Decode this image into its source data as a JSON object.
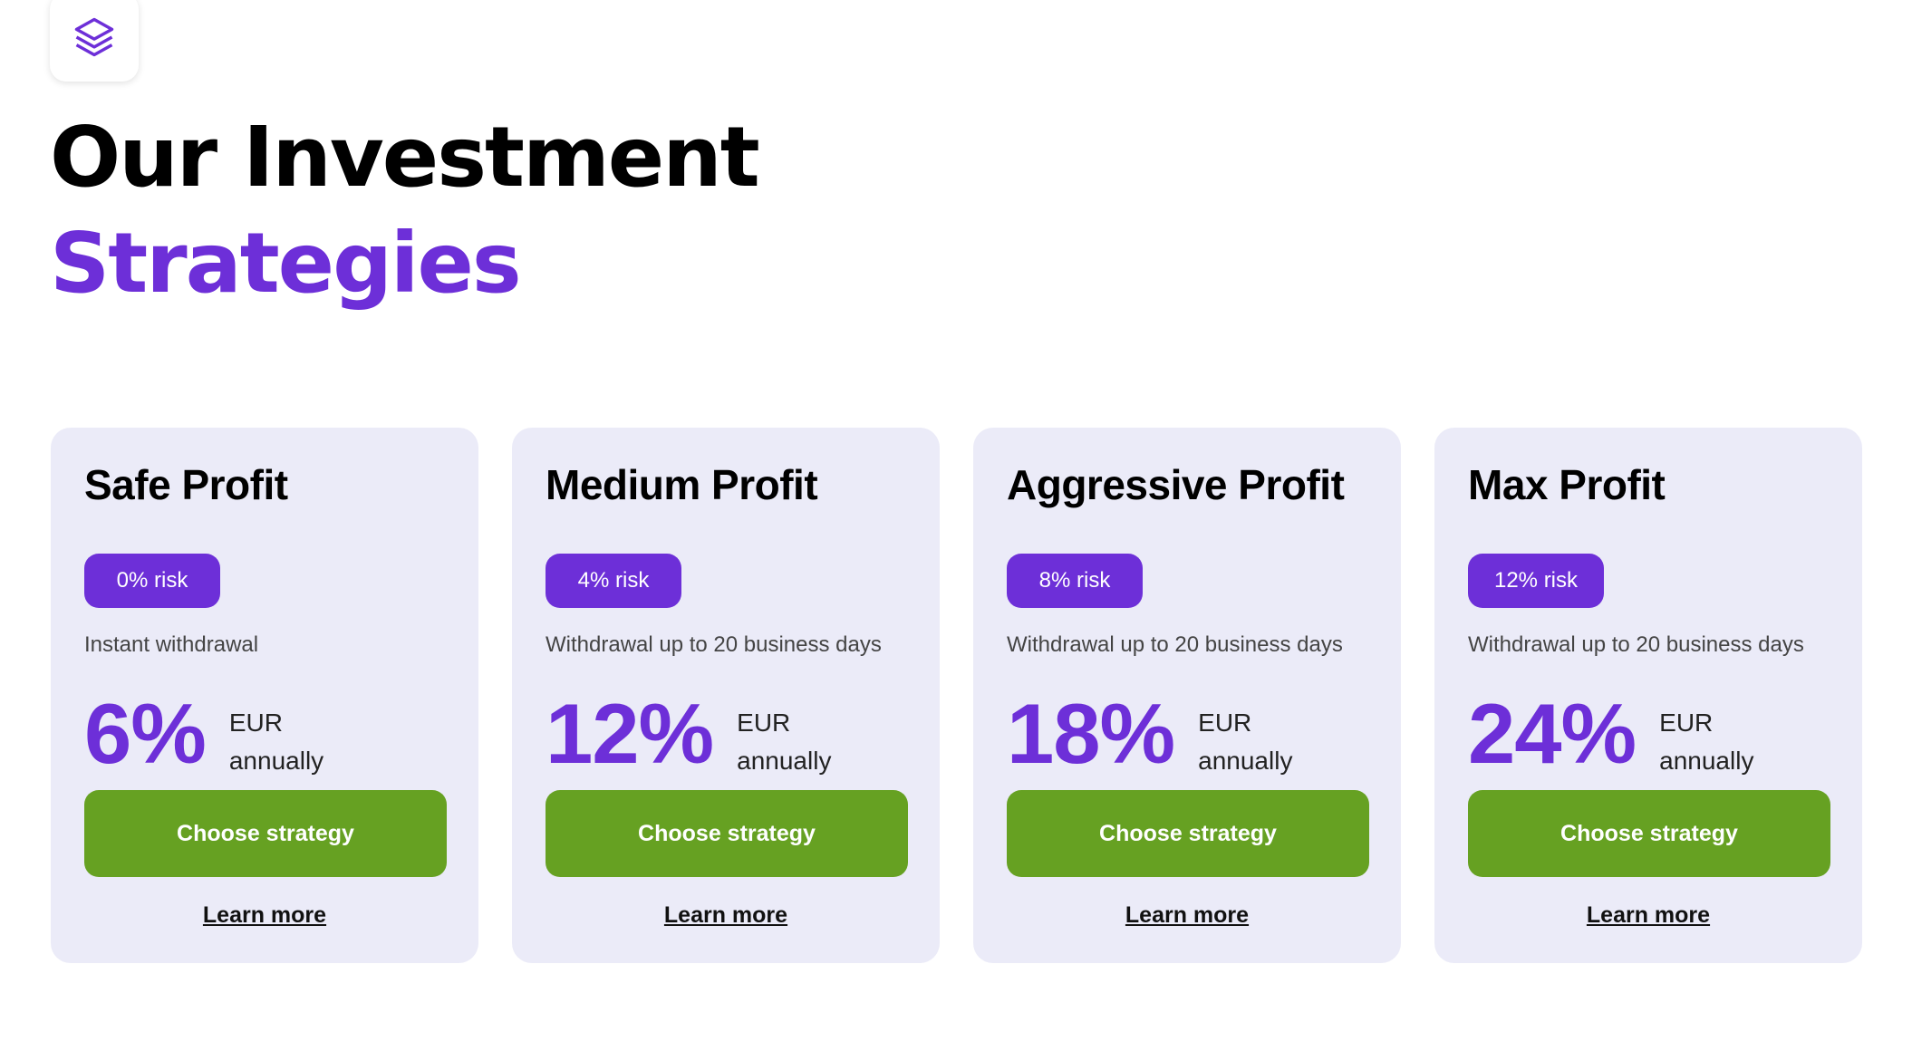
{
  "header": {
    "title_line1": "Our Investment",
    "title_line2": "Strategies"
  },
  "cards": [
    {
      "title": "Safe Profit",
      "risk": "0% risk",
      "withdrawal": "Instant withdrawal",
      "rate": "6%",
      "currency": "EUR",
      "period": "annually",
      "button": "Choose strategy",
      "link": "Learn more"
    },
    {
      "title": "Medium Profit",
      "risk": "4% risk",
      "withdrawal": "Withdrawal up to 20 business days",
      "rate": "12%",
      "currency": "EUR",
      "period": "annually",
      "button": "Choose strategy",
      "link": "Learn more"
    },
    {
      "title": "Aggressive Profit",
      "risk": "8% risk",
      "withdrawal": "Withdrawal up to 20 business days",
      "rate": "18%",
      "currency": "EUR",
      "period": "annually",
      "button": "Choose strategy",
      "link": "Learn more"
    },
    {
      "title": "Max Profit",
      "risk": "12% risk",
      "withdrawal": "Withdrawal up to 20 business days",
      "rate": "24%",
      "currency": "EUR",
      "period": "annually",
      "button": "Choose strategy",
      "link": "Learn more"
    }
  ]
}
